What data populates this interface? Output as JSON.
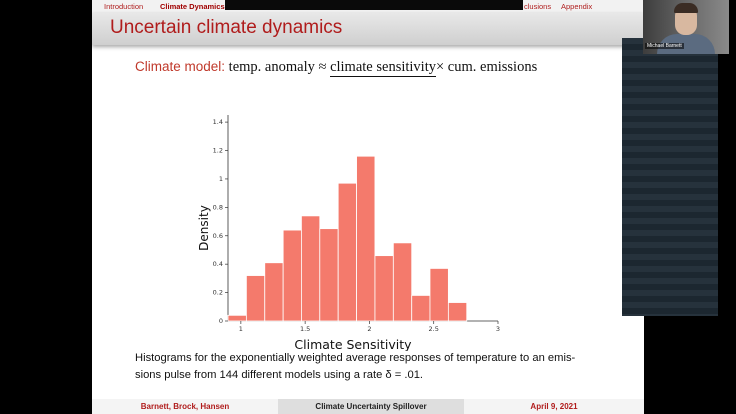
{
  "nav": {
    "items": [
      "Introduction",
      "Climate Dynamics",
      "clusions",
      "Appendix"
    ]
  },
  "slide": {
    "title": "Uncertain climate dynamics",
    "model": {
      "label": "Climate model",
      "lhs": "temp. anomaly",
      "approx": "≈",
      "term1": "climate sensitivity",
      "times": "×",
      "term2": "cum. emissions"
    },
    "caption": "Histograms for the exponentially weighted average responses of temperature to an emis-sions pulse from 144 different models using a rate δ = .01."
  },
  "footer": {
    "authors": "Barnett, Brock, Hansen",
    "talk": "Climate Uncertainty Spillover",
    "date": "April 9, 2021"
  },
  "webcam": {
    "name": "Michael Barnett"
  },
  "chart_data": {
    "type": "bar",
    "title": "",
    "xlabel": "Climate Sensitivity",
    "ylabel": "Density",
    "xlim": [
      0.9,
      3.0
    ],
    "ylim": [
      0,
      1.45
    ],
    "xticks": [
      1,
      1.5,
      2,
      2.5,
      3
    ],
    "yticks": [
      0,
      0.2,
      0.4,
      0.6,
      0.8,
      1,
      1.2,
      1.4
    ],
    "bin_width": 0.1429,
    "bins_left": [
      0.9,
      1.043,
      1.186,
      1.329,
      1.471,
      1.614,
      1.757,
      1.9,
      2.043,
      2.186,
      2.329,
      2.471,
      2.614
    ],
    "values": [
      0.04,
      0.32,
      0.41,
      0.64,
      0.74,
      0.65,
      0.97,
      1.16,
      0.46,
      0.55,
      0.18,
      0.37,
      0.13
    ],
    "bar_color": "#f47a6c",
    "bar_edge": "#ffffff"
  }
}
